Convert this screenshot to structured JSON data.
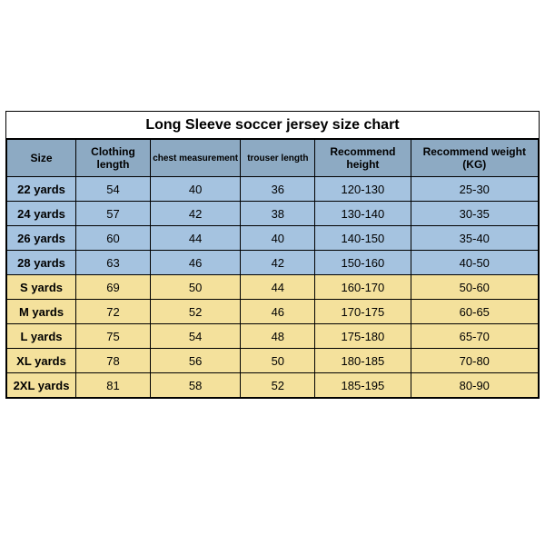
{
  "title": "Long Sleeve soccer jersey size chart",
  "colors": {
    "header_bg": "#8daac3",
    "blue_row_bg": "#a5c3e0",
    "yellow_row_bg": "#f4e19c",
    "border": "#000000",
    "page_bg": "#ffffff",
    "text": "#000000"
  },
  "columns": [
    {
      "key": "size",
      "label": "Size",
      "width": "13%"
    },
    {
      "key": "clothing_length",
      "label": "Clothing length",
      "width": "14%",
      "twoline": true
    },
    {
      "key": "chest",
      "label": "chest measurement",
      "width": "17%",
      "small": true
    },
    {
      "key": "trouser_length",
      "label": "trouser length",
      "width": "14%",
      "small": true
    },
    {
      "key": "rec_height",
      "label": "Recommend height",
      "width": "18%",
      "twoline": true
    },
    {
      "key": "rec_weight",
      "label": "Recommend weight (KG)",
      "width": "24%"
    }
  ],
  "rows": [
    {
      "band": "blue",
      "size": "22 yards",
      "clothing_length": "54",
      "chest": "40",
      "trouser_length": "36",
      "rec_height": "120-130",
      "rec_weight": "25-30"
    },
    {
      "band": "blue",
      "size": "24 yards",
      "clothing_length": "57",
      "chest": "42",
      "trouser_length": "38",
      "rec_height": "130-140",
      "rec_weight": "30-35"
    },
    {
      "band": "blue",
      "size": "26 yards",
      "clothing_length": "60",
      "chest": "44",
      "trouser_length": "40",
      "rec_height": "140-150",
      "rec_weight": "35-40"
    },
    {
      "band": "blue",
      "size": "28 yards",
      "clothing_length": "63",
      "chest": "46",
      "trouser_length": "42",
      "rec_height": "150-160",
      "rec_weight": "40-50"
    },
    {
      "band": "yellow",
      "size": "S yards",
      "clothing_length": "69",
      "chest": "50",
      "trouser_length": "44",
      "rec_height": "160-170",
      "rec_weight": "50-60"
    },
    {
      "band": "yellow",
      "size": "M yards",
      "clothing_length": "72",
      "chest": "52",
      "trouser_length": "46",
      "rec_height": "170-175",
      "rec_weight": "60-65"
    },
    {
      "band": "yellow",
      "size": "L yards",
      "clothing_length": "75",
      "chest": "54",
      "trouser_length": "48",
      "rec_height": "175-180",
      "rec_weight": "65-70"
    },
    {
      "band": "yellow",
      "size": "XL yards",
      "clothing_length": "78",
      "chest": "56",
      "trouser_length": "50",
      "rec_height": "180-185",
      "rec_weight": "70-80"
    },
    {
      "band": "yellow",
      "size": "2XL yards",
      "clothing_length": "81",
      "chest": "58",
      "trouser_length": "52",
      "rec_height": "185-195",
      "rec_weight": "80-90"
    }
  ]
}
